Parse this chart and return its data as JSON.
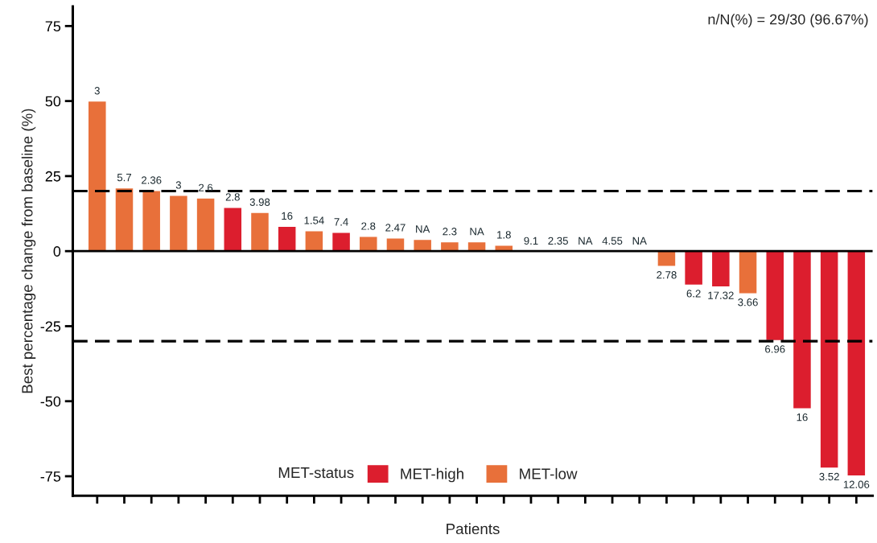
{
  "chart_data": {
    "type": "bar",
    "ylabel": "Best percentage change from baseline (%)",
    "xlabel": "Patients",
    "legend_title": "MET-status",
    "annotations": [
      "n/N(%) = 29/30 (96.67%)"
    ],
    "categories": [
      null,
      null,
      null,
      null,
      null,
      null,
      null,
      null,
      null,
      null,
      null,
      null,
      null,
      null,
      null,
      null,
      null,
      null,
      null,
      null,
      null,
      null,
      null,
      null,
      null,
      null,
      null,
      null,
      null
    ],
    "series": [
      {
        "name": "MET-high",
        "color": "#dc1e2e",
        "values": [
          null,
          null,
          null,
          null,
          null,
          14.6,
          null,
          8.3,
          null,
          6.3,
          null,
          null,
          null,
          null,
          null,
          null,
          null,
          null,
          null,
          null,
          null,
          null,
          -11.3,
          -11.9,
          null,
          -29.8,
          -52.5,
          -72.3,
          -74.9
        ]
      },
      {
        "name": "MET-low",
        "color": "#e8703a",
        "values": [
          50,
          21.1,
          20.2,
          18.6,
          17.7,
          null,
          12.9,
          null,
          6.8,
          null,
          4.9,
          4.4,
          3.9,
          3.1,
          3.1,
          2.0,
          null,
          null,
          null,
          null,
          null,
          -5.1,
          null,
          null,
          -14.2,
          null,
          null,
          null,
          null
        ]
      }
    ],
    "value_labels": [
      "3",
      "5.7",
      "2.36",
      "3",
      "2.6",
      "2.8",
      "3.98",
      "16",
      "1.54",
      "7.4",
      "2.8",
      "2.47",
      "NA",
      "2.3",
      "NA",
      "1.8",
      "9.1",
      "2.35",
      "NA",
      "4.55",
      "NA",
      "2.78",
      "6.2",
      "17.32",
      "3.66",
      "6.96",
      "16",
      "3.52",
      "12.06"
    ],
    "ylim": [
      -81.5,
      81.5
    ],
    "yticks": [
      -75,
      -50,
      -25,
      0,
      25,
      50,
      75
    ],
    "ref_lines": [
      {
        "axis": "y",
        "value": 0,
        "line_style": "solid"
      },
      {
        "axis": "y",
        "value": 20,
        "line_style": "dashed"
      },
      {
        "axis": "y",
        "value": -30,
        "line_style": "dashed"
      }
    ],
    "legend": "bottom",
    "grid": false
  }
}
